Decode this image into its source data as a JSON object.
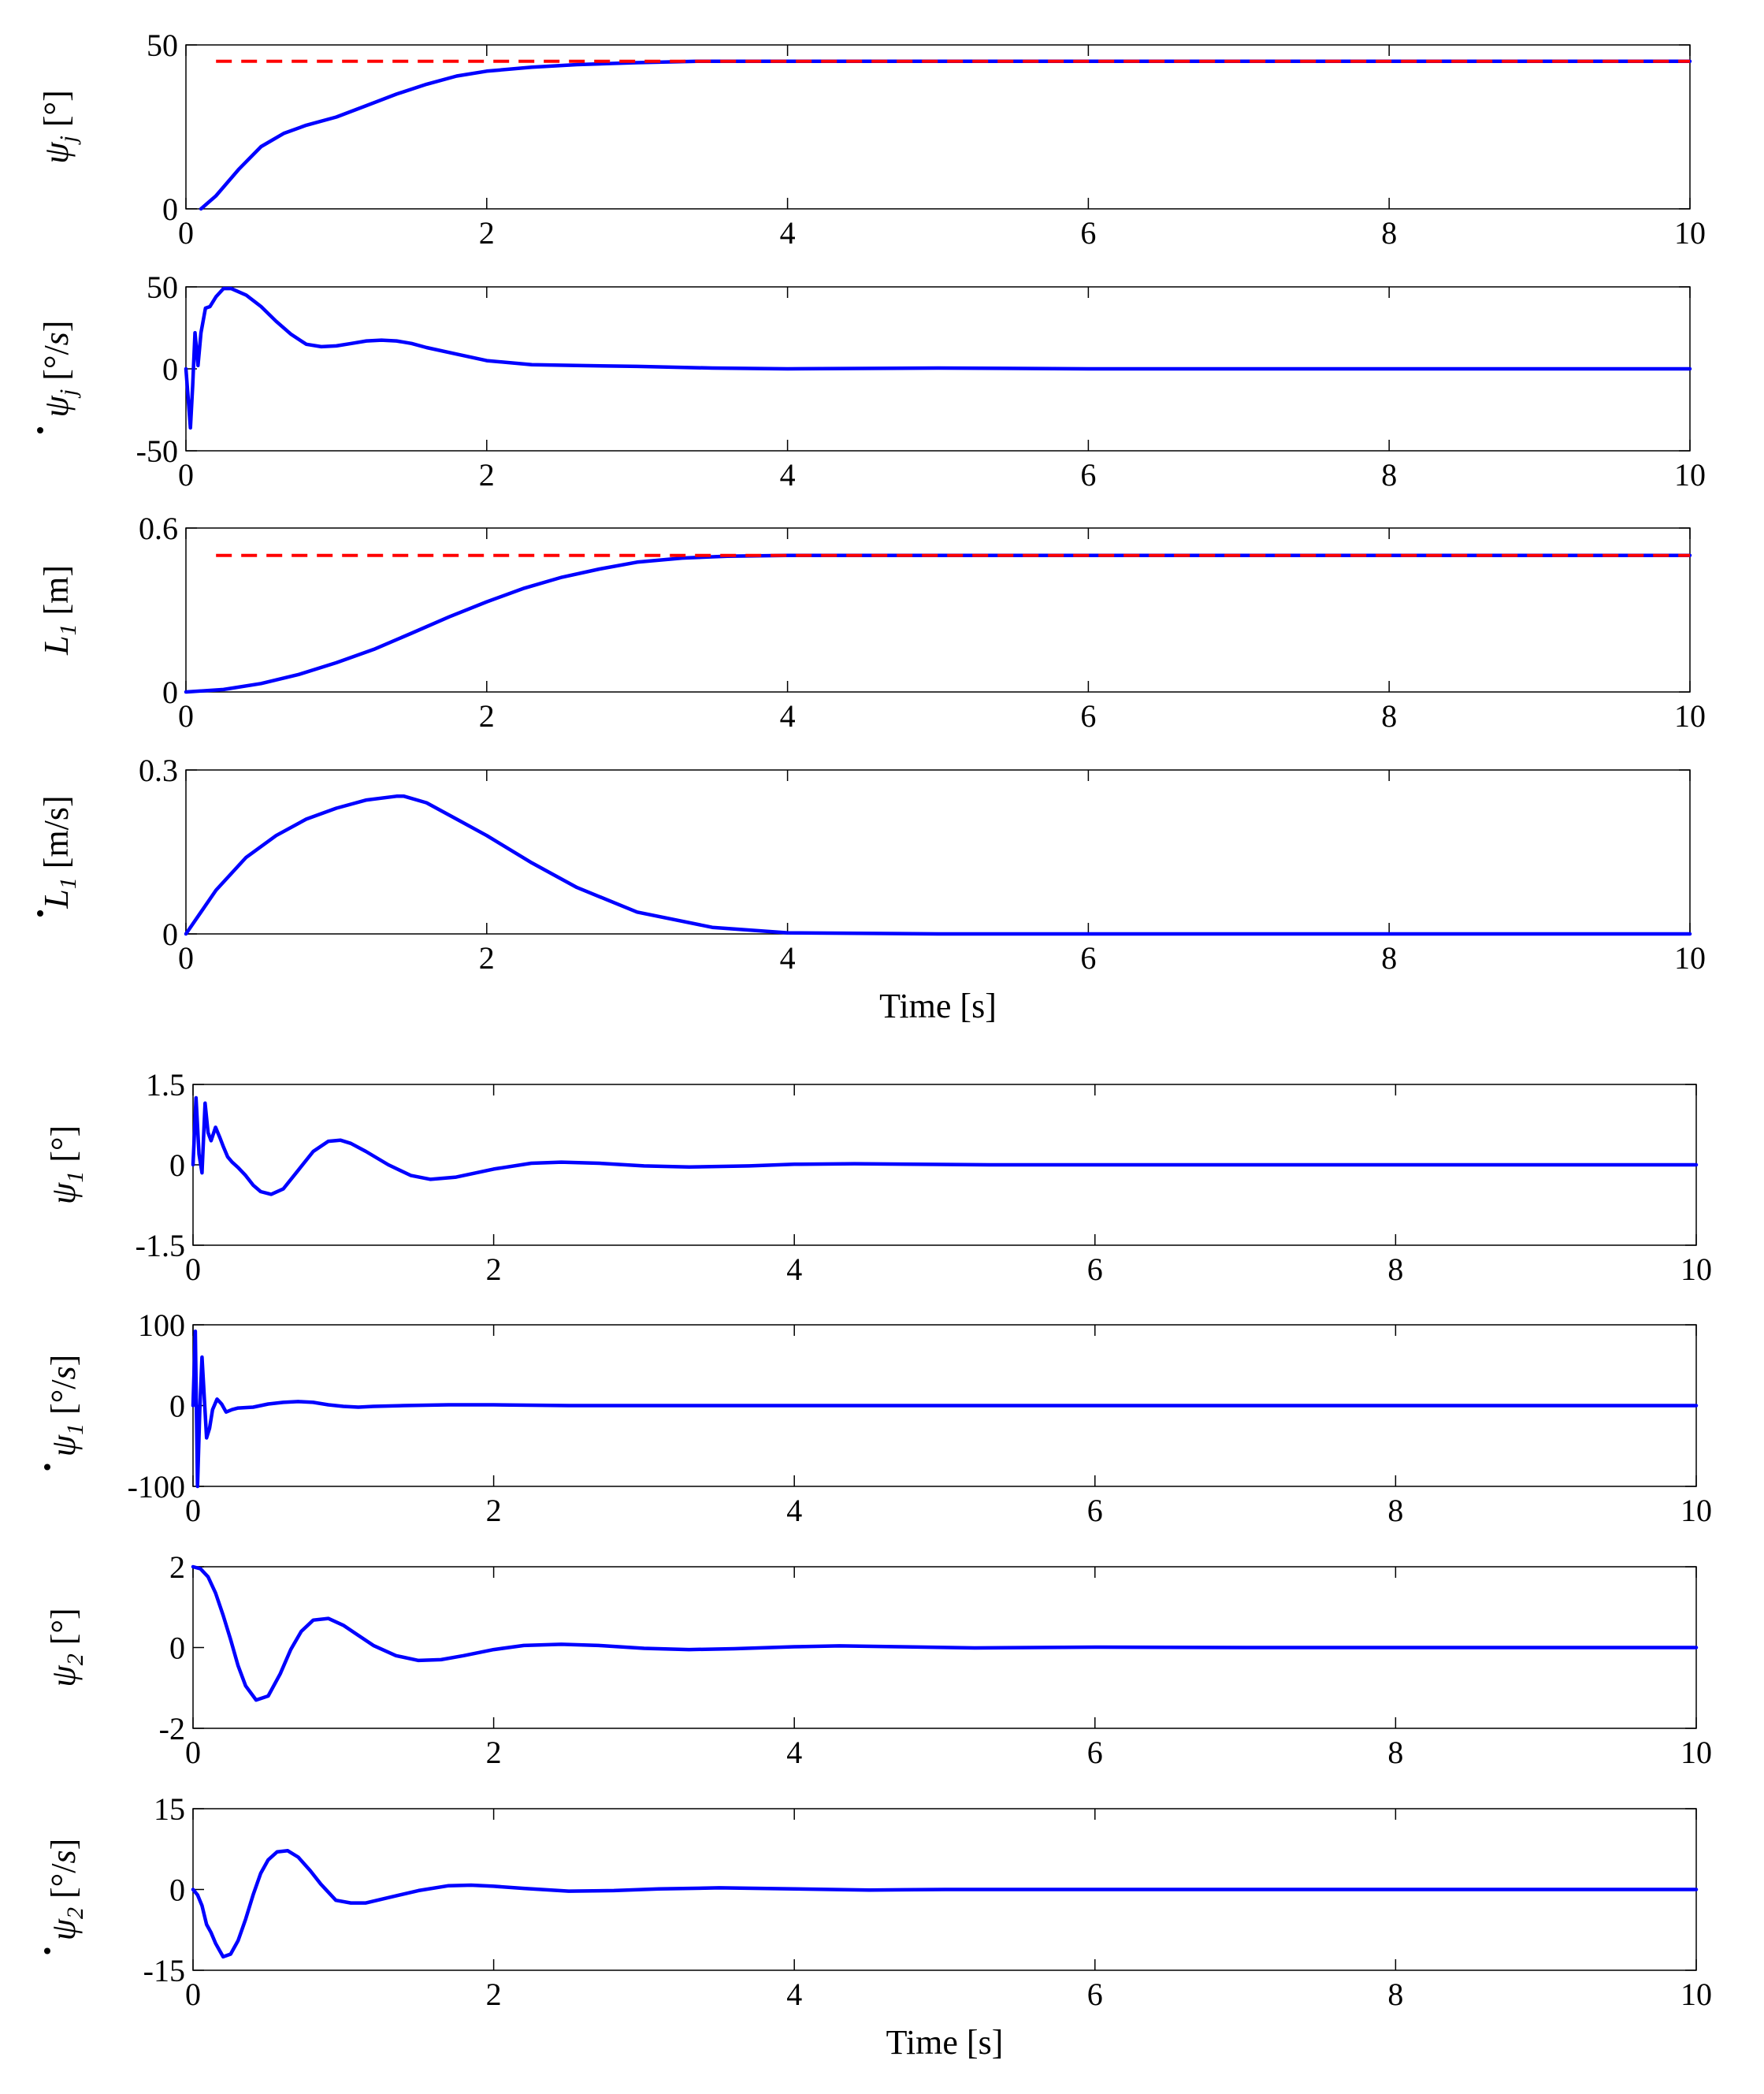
{
  "chart_data": [
    {
      "type": "line",
      "id": "psi-j",
      "ylabel": [
        "ψ",
        "j",
        "[°]"
      ],
      "ylabel_dot": false,
      "xlim": [
        0,
        10
      ],
      "ylim": [
        0,
        50
      ],
      "yticks": [
        "0",
        "50"
      ],
      "xticks": [
        "0",
        "2",
        "4",
        "6",
        "8",
        "10"
      ],
      "xlabel": "",
      "series": [
        {
          "color": "#0000ff",
          "style": "solid",
          "x": [
            0.1,
            0.2,
            0.35,
            0.5,
            0.65,
            0.8,
            1.0,
            1.2,
            1.4,
            1.6,
            1.8,
            2.0,
            2.3,
            2.6,
            3.0,
            3.4,
            4.0,
            5.0,
            6.0,
            7.0,
            8.0,
            9.0,
            10.0
          ],
          "y": [
            0,
            4,
            12,
            19,
            23,
            25.5,
            28,
            31.5,
            35,
            38,
            40.5,
            42,
            43.2,
            44,
            44.6,
            45,
            45,
            45,
            45,
            45,
            45,
            45,
            45
          ]
        },
        {
          "color": "#ff0000",
          "style": "dashed",
          "x": [
            0.2,
            10.0
          ],
          "y": [
            45,
            45
          ]
        }
      ]
    },
    {
      "type": "line",
      "id": "psi-j-dot",
      "ylabel": [
        "ψ",
        "j",
        "[°/",
        "s",
        "]"
      ],
      "ylabel_dot": true,
      "xlim": [
        0,
        10
      ],
      "ylim": [
        -50,
        50
      ],
      "yticks": [
        "-50",
        "0",
        "50"
      ],
      "xticks": [
        "0",
        "2",
        "4",
        "6",
        "8",
        "10"
      ],
      "xlabel": "",
      "series": [
        {
          "color": "#0000ff",
          "style": "solid",
          "x": [
            0,
            0.03,
            0.045,
            0.06,
            0.08,
            0.1,
            0.13,
            0.16,
            0.2,
            0.25,
            0.3,
            0.4,
            0.5,
            0.6,
            0.7,
            0.8,
            0.9,
            1.0,
            1.1,
            1.2,
            1.3,
            1.4,
            1.5,
            1.6,
            1.8,
            2.0,
            2.3,
            2.6,
            3.0,
            3.5,
            4.0,
            5.0,
            6.0,
            7.0,
            8.0,
            9.0,
            10.0
          ],
          "y": [
            0,
            -36,
            -10,
            22,
            2,
            22,
            37,
            38,
            44,
            49,
            49,
            45,
            38,
            29,
            21,
            15,
            13.5,
            14,
            15.5,
            17,
            17.5,
            17,
            15.5,
            13,
            9,
            5,
            2.5,
            2,
            1.5,
            0.5,
            0,
            0.5,
            0,
            0,
            0,
            0,
            0
          ]
        }
      ]
    },
    {
      "type": "line",
      "id": "l1",
      "ylabel": [
        "L",
        "1",
        "[m]"
      ],
      "ylabel_dot": false,
      "xlim": [
        0,
        10
      ],
      "ylim": [
        0,
        0.6
      ],
      "yticks": [
        "0",
        "0.6"
      ],
      "xticks": [
        "0",
        "2",
        "4",
        "6",
        "8",
        "10"
      ],
      "xlabel": "",
      "series": [
        {
          "color": "#0000ff",
          "style": "solid",
          "x": [
            0,
            0.25,
            0.5,
            0.75,
            1.0,
            1.25,
            1.5,
            1.75,
            2.0,
            2.25,
            2.5,
            2.75,
            3.0,
            3.3,
            3.6,
            4.0,
            5.0,
            6.0,
            7.0,
            8.0,
            9.0,
            10.0
          ],
          "y": [
            0,
            0.009,
            0.031,
            0.064,
            0.107,
            0.156,
            0.215,
            0.275,
            0.33,
            0.38,
            0.42,
            0.45,
            0.475,
            0.49,
            0.497,
            0.5,
            0.5,
            0.5,
            0.5,
            0.5,
            0.5,
            0.5
          ]
        },
        {
          "color": "#ff0000",
          "style": "dashed",
          "x": [
            0.2,
            10.0
          ],
          "y": [
            0.5,
            0.5
          ]
        }
      ]
    },
    {
      "type": "line",
      "id": "l1-dot",
      "ylabel": [
        "L",
        "1",
        "[m/s]"
      ],
      "ylabel_dot": true,
      "xlim": [
        0,
        10
      ],
      "ylim": [
        0,
        0.3
      ],
      "yticks": [
        "0",
        "0.3"
      ],
      "xticks": [
        "0",
        "2",
        "4",
        "6",
        "8",
        "10"
      ],
      "xlabel": "Time [s]",
      "series": [
        {
          "color": "#0000ff",
          "style": "solid",
          "x": [
            0,
            0.2,
            0.4,
            0.6,
            0.8,
            1.0,
            1.2,
            1.4,
            1.45,
            1.6,
            1.8,
            2.0,
            2.3,
            2.6,
            3.0,
            3.5,
            4.0,
            5.0,
            6.0,
            7.0,
            8.0,
            9.0,
            10.0
          ],
          "y": [
            0,
            0.08,
            0.14,
            0.18,
            0.21,
            0.23,
            0.245,
            0.252,
            0.252,
            0.24,
            0.21,
            0.18,
            0.13,
            0.085,
            0.04,
            0.012,
            0.002,
            0,
            0,
            0,
            0,
            0,
            0
          ]
        }
      ]
    },
    {
      "type": "line",
      "id": "psi-1",
      "ylabel": [
        "ψ",
        "1",
        "[°]"
      ],
      "ylabel_dot": false,
      "xlim": [
        0,
        10
      ],
      "ylim": [
        -1.5,
        1.5
      ],
      "yticks": [
        "-1.5",
        "0",
        "1.5"
      ],
      "xticks": [
        "0",
        "2",
        "4",
        "6",
        "8",
        "10"
      ],
      "xlabel": "",
      "series": [
        {
          "color": "#0000ff",
          "style": "solid",
          "x": [
            0,
            0.02,
            0.04,
            0.06,
            0.08,
            0.1,
            0.12,
            0.15,
            0.18,
            0.2,
            0.23,
            0.26,
            0.3,
            0.35,
            0.4,
            0.45,
            0.52,
            0.6,
            0.7,
            0.8,
            0.9,
            0.98,
            1.05,
            1.15,
            1.3,
            1.45,
            1.58,
            1.75,
            2.0,
            2.25,
            2.45,
            2.7,
            3.0,
            3.3,
            3.7,
            4.0,
            4.4,
            4.8,
            5.3,
            6.0,
            7.0,
            8.0,
            9.0,
            10.0
          ],
          "y": [
            0,
            1.25,
            0.2,
            -0.15,
            1.15,
            0.6,
            0.45,
            0.7,
            0.5,
            0.35,
            0.15,
            0.05,
            -0.05,
            -0.2,
            -0.38,
            -0.5,
            -0.55,
            -0.45,
            -0.1,
            0.25,
            0.44,
            0.46,
            0.4,
            0.25,
            0.0,
            -0.2,
            -0.27,
            -0.23,
            -0.08,
            0.03,
            0.05,
            0.03,
            -0.02,
            -0.04,
            -0.02,
            0.01,
            0.02,
            0.01,
            0,
            0,
            0,
            0,
            0,
            0
          ]
        }
      ]
    },
    {
      "type": "line",
      "id": "psi-1-dot",
      "ylabel": [
        "ψ",
        "1",
        "[°/",
        "s",
        "]"
      ],
      "ylabel_dot": true,
      "xlim": [
        0,
        10
      ],
      "ylim": [
        -100,
        100
      ],
      "yticks": [
        "-100",
        "0",
        "100"
      ],
      "xticks": [
        "0",
        "2",
        "4",
        "6",
        "8",
        "10"
      ],
      "xlabel": "",
      "series": [
        {
          "color": "#0000ff",
          "style": "solid",
          "x": [
            0,
            0.015,
            0.03,
            0.045,
            0.06,
            0.075,
            0.09,
            0.11,
            0.13,
            0.16,
            0.19,
            0.22,
            0.26,
            0.3,
            0.4,
            0.5,
            0.6,
            0.7,
            0.8,
            0.9,
            1.0,
            1.1,
            1.2,
            1.4,
            1.7,
            2.0,
            2.5,
            3.0,
            4.0,
            5.0,
            6.0,
            7.0,
            8.0,
            9.0,
            10.0
          ],
          "y": [
            0,
            92,
            -100,
            -5,
            60,
            10,
            -40,
            -28,
            -5,
            8,
            2,
            -8,
            -5,
            -3,
            -2,
            2,
            4,
            5,
            4,
            1,
            -1,
            -2,
            -1,
            0,
            1,
            1,
            0,
            0,
            0,
            0,
            0,
            0,
            0,
            0,
            0
          ]
        }
      ]
    },
    {
      "type": "line",
      "id": "psi-2",
      "ylabel": [
        "ψ",
        "2",
        "[°]"
      ],
      "ylabel_dot": false,
      "xlim": [
        0,
        10
      ],
      "ylim": [
        -2,
        2
      ],
      "yticks": [
        "-2",
        "0",
        "2"
      ],
      "xticks": [
        "0",
        "2",
        "4",
        "6",
        "8",
        "10"
      ],
      "xlabel": "",
      "series": [
        {
          "color": "#0000ff",
          "style": "solid",
          "x": [
            0,
            0.05,
            0.1,
            0.15,
            0.2,
            0.25,
            0.3,
            0.35,
            0.42,
            0.5,
            0.58,
            0.65,
            0.72,
            0.8,
            0.9,
            1.0,
            1.1,
            1.2,
            1.35,
            1.5,
            1.65,
            1.8,
            2.0,
            2.2,
            2.45,
            2.7,
            3.0,
            3.3,
            3.6,
            4.0,
            4.3,
            4.7,
            5.2,
            6.0,
            7.0,
            8.0,
            9.0,
            10.0
          ],
          "y": [
            2,
            1.95,
            1.75,
            1.35,
            0.8,
            0.2,
            -0.45,
            -0.95,
            -1.3,
            -1.2,
            -0.65,
            -0.05,
            0.4,
            0.68,
            0.72,
            0.55,
            0.3,
            0.05,
            -0.2,
            -0.32,
            -0.3,
            -0.2,
            -0.05,
            0.05,
            0.08,
            0.05,
            -0.02,
            -0.05,
            -0.03,
            0.02,
            0.04,
            0.02,
            -0.01,
            0.01,
            0,
            0,
            0,
            0
          ]
        }
      ]
    },
    {
      "type": "line",
      "id": "psi-2-dot",
      "ylabel": [
        "ψ",
        "2",
        "[°/",
        "s",
        "]"
      ],
      "ylabel_dot": true,
      "xlim": [
        0,
        10
      ],
      "ylim": [
        -15,
        15
      ],
      "yticks": [
        "-15",
        "0",
        "15"
      ],
      "xticks": [
        "0",
        "2",
        "4",
        "6",
        "8",
        "10"
      ],
      "xlabel": "Time [s]",
      "series": [
        {
          "color": "#0000ff",
          "style": "solid",
          "x": [
            0,
            0.03,
            0.06,
            0.09,
            0.12,
            0.15,
            0.2,
            0.25,
            0.3,
            0.35,
            0.4,
            0.45,
            0.5,
            0.56,
            0.63,
            0.7,
            0.78,
            0.85,
            0.95,
            1.05,
            1.15,
            1.3,
            1.5,
            1.7,
            1.85,
            2.0,
            2.2,
            2.5,
            2.8,
            3.1,
            3.5,
            4.0,
            4.5,
            5.0,
            6.0,
            7.0,
            8.0,
            9.0,
            10.0
          ],
          "y": [
            0,
            -1,
            -3,
            -6.5,
            -8,
            -10,
            -12.5,
            -12,
            -9.5,
            -5.5,
            -1,
            3,
            5.5,
            7,
            7.2,
            6,
            3.5,
            1,
            -2,
            -2.5,
            -2.5,
            -1.5,
            -0.2,
            0.7,
            0.8,
            0.6,
            0.2,
            -0.3,
            -0.2,
            0.1,
            0.3,
            0.1,
            -0.1,
            0,
            0,
            0,
            0,
            0,
            0
          ]
        }
      ]
    }
  ]
}
